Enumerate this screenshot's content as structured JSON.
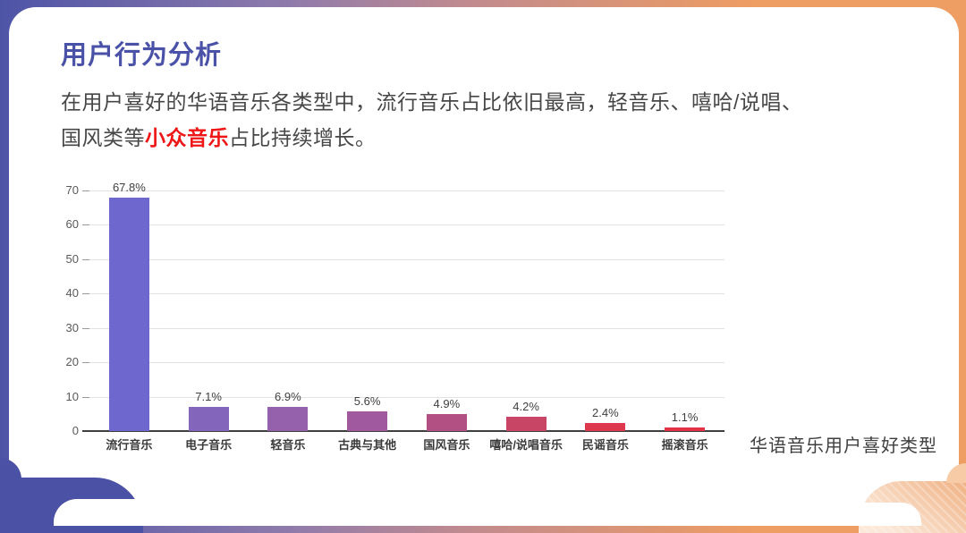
{
  "slide": {
    "title": "用户行为分析",
    "body_line1": "在用户喜好的华语音乐各类型中，流行音乐占比依旧最高，轻音乐、嘻哈/说唱、",
    "body_line2_prefix": "国风类等",
    "body_highlight": "小众音乐",
    "body_line2_suffix": "占比持续增长。"
  },
  "colors": {
    "title": "#4A52A8",
    "body_text": "#474747",
    "highlight": "#EE1616",
    "bg_gradient_left": "#4E54A7",
    "bg_gradient_mid": "#C08A8F",
    "bg_gradient_right": "#EE9D63",
    "corner_purple": "#4B51A4",
    "corner_orange": "#F0B183",
    "axis_line": "#3F3F3F",
    "grid_line": "#E2E2E2",
    "tick_label": "#595959",
    "value_label": "#404040",
    "category_label": "#3A3A3A"
  },
  "chart_data": {
    "type": "bar",
    "title": "",
    "xlabel": "",
    "ylabel": "",
    "caption": "华语音乐用户喜好类型",
    "categories": [
      "流行音乐",
      "电子音乐",
      "轻音乐",
      "古典与其他",
      "国风音乐",
      "嘻哈/说唱音乐",
      "民谣音乐",
      "摇滚音乐"
    ],
    "values": [
      67.8,
      7.1,
      6.9,
      5.6,
      4.9,
      4.2,
      2.4,
      1.1
    ],
    "value_labels": [
      "67.8%",
      "7.1%",
      "6.9%",
      "5.6%",
      "4.9%",
      "4.2%",
      "2.4%",
      "1.1%"
    ],
    "bar_colors": [
      "#6E68CE",
      "#8365BC",
      "#9560AC",
      "#A0589F",
      "#B25084",
      "#C94566",
      "#DE384E",
      "#E23246"
    ],
    "ylim": [
      0,
      70
    ],
    "yticks": [
      0,
      10,
      20,
      30,
      40,
      50,
      60,
      70
    ],
    "grid": true,
    "legend": "none"
  }
}
